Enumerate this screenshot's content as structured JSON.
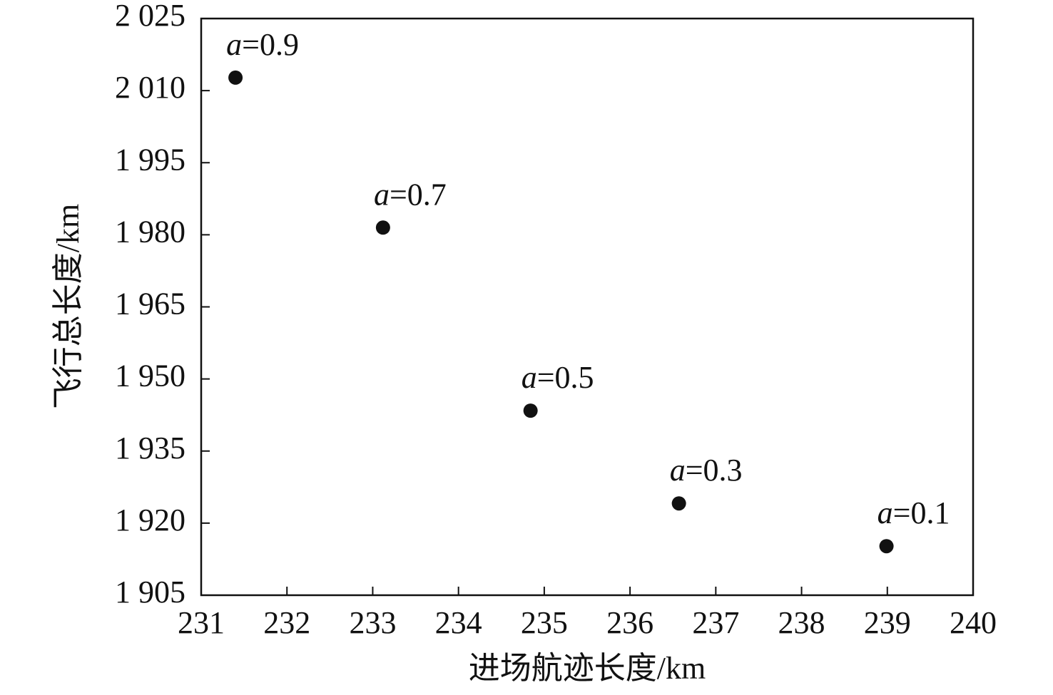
{
  "chart_data": {
    "type": "scatter",
    "x_label": "进场航迹长度/km",
    "y_label": "飞行总长度/km",
    "x": [
      231.4,
      233.12,
      234.84,
      236.57,
      238.99
    ],
    "values": [
      2012.7,
      1981.5,
      1943.4,
      1924.1,
      1915.2
    ],
    "point_labels": [
      "a=0.9",
      "a=0.7",
      "a=0.5",
      "a=0.3",
      "a=0.1"
    ],
    "color": "#111111",
    "xlim": [
      231,
      240
    ],
    "xticks": [
      231,
      232,
      233,
      234,
      235,
      236,
      237,
      238,
      239,
      240
    ],
    "ylim": [
      1905,
      2025
    ],
    "yticks": [
      {
        "value": 1905,
        "label": "1 905"
      },
      {
        "value": 1920,
        "label": "1 920"
      },
      {
        "value": 1935,
        "label": "1 935"
      },
      {
        "value": 1950,
        "label": "1 950"
      },
      {
        "value": 1965,
        "label": "1 965"
      },
      {
        "value": 1980,
        "label": "1 980"
      },
      {
        "value": 1995,
        "label": "1 995"
      },
      {
        "value": 2010,
        "label": "2 010"
      },
      {
        "value": 2025,
        "label": "2 025"
      }
    ],
    "grid": false
  }
}
